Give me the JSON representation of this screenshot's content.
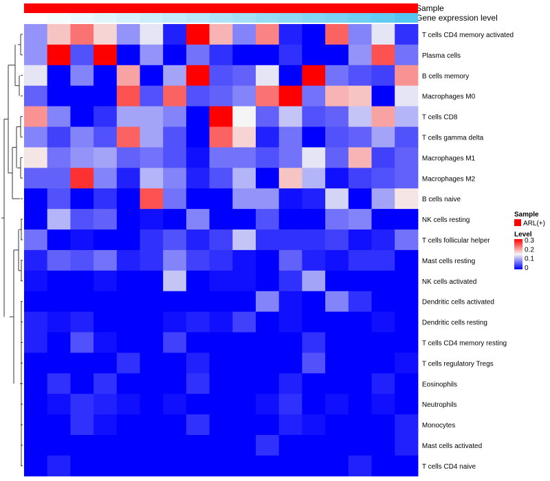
{
  "chart_data": {
    "type": "heatmap",
    "annotation_tracks": [
      {
        "name": "Sample",
        "kind": "categorical",
        "color": "#ff0000"
      },
      {
        "name": "Gene expression level",
        "kind": "continuous",
        "low_color": "#ffffff",
        "high_color": "#55c6f0"
      }
    ],
    "gene_expression_level": [
      0.0,
      0.06,
      0.12,
      0.18,
      0.24,
      0.3,
      0.36,
      0.42,
      0.48,
      0.55,
      0.61,
      0.67,
      0.73,
      0.79,
      0.85,
      0.91,
      1.0
    ],
    "rows": [
      "T cells CD4 memory activated",
      "Plasma cells",
      "B cells memory",
      "Macrophages M0",
      "T cells CD8",
      "T cells gamma delta",
      "Macrophages M1",
      "Macrophages M2",
      "B cells naive",
      "NK cells resting",
      "T cells follicular helper",
      "Mast cells resting",
      "NK cells activated",
      "Dendritic cells activated",
      "Dendritic cells resting",
      "T cells CD4 memory resting",
      "T cells regulatory  Tregs",
      "Eosinophils",
      "Neutrophils",
      "Monocytes",
      "Mast cells activated",
      "T cells CD4 naive"
    ],
    "n_columns": 17,
    "values": [
      [
        0.09,
        0.18,
        0.23,
        0.17,
        0.09,
        0.14,
        0.02,
        0.32,
        0.19,
        0.08,
        0.22,
        0.02,
        0.0,
        0.24,
        0.08,
        0.14,
        0.03
      ],
      [
        0.09,
        0.32,
        0.05,
        0.32,
        0.0,
        0.09,
        0.0,
        0.07,
        0.03,
        0.0,
        0.0,
        0.03,
        0.0,
        0.0,
        0.09,
        0.25,
        0.07
      ],
      [
        0.14,
        0.0,
        0.08,
        0.0,
        0.2,
        0.0,
        0.1,
        0.32,
        0.05,
        0.06,
        0.14,
        0.0,
        0.32,
        0.07,
        0.05,
        0.04,
        0.21
      ],
      [
        0.06,
        0.0,
        0.0,
        0.0,
        0.25,
        0.05,
        0.24,
        0.05,
        0.06,
        0.08,
        0.23,
        0.32,
        0.07,
        0.19,
        0.18,
        0.0,
        0.14
      ],
      [
        0.21,
        0.08,
        0.0,
        0.03,
        0.1,
        0.1,
        0.08,
        0.0,
        0.3,
        0.15,
        0.06,
        0.12,
        0.05,
        0.06,
        0.12,
        0.2,
        0.11
      ],
      [
        0.08,
        0.04,
        0.08,
        0.05,
        0.24,
        0.1,
        0.05,
        0.0,
        0.24,
        0.17,
        0.02,
        0.07,
        0.0,
        0.05,
        0.06,
        0.1,
        0.05
      ],
      [
        0.16,
        0.07,
        0.09,
        0.1,
        0.06,
        0.07,
        0.05,
        0.01,
        0.07,
        0.07,
        0.05,
        0.07,
        0.14,
        0.06,
        0.19,
        0.04,
        0.06
      ],
      [
        0.06,
        0.06,
        0.27,
        0.08,
        0.02,
        0.11,
        0.08,
        0.02,
        0.05,
        0.11,
        0.0,
        0.18,
        0.11,
        0.01,
        0.04,
        0.05,
        0.06
      ],
      [
        0.0,
        0.05,
        0.0,
        0.03,
        0.0,
        0.25,
        0.07,
        0.0,
        0.0,
        0.09,
        0.09,
        0.01,
        0.02,
        0.13,
        0.0,
        0.1,
        0.16
      ],
      [
        0.0,
        0.11,
        0.05,
        0.06,
        0.0,
        0.01,
        0.0,
        0.08,
        0.0,
        0.0,
        0.05,
        0.0,
        0.0,
        0.07,
        0.08,
        0.0,
        0.0
      ],
      [
        0.07,
        0.0,
        0.01,
        0.0,
        0.0,
        0.03,
        0.05,
        0.02,
        0.04,
        0.12,
        0.03,
        0.03,
        0.03,
        0.04,
        0.01,
        0.02,
        0.07
      ],
      [
        0.02,
        0.06,
        0.05,
        0.07,
        0.02,
        0.03,
        0.08,
        0.04,
        0.03,
        0.01,
        0.0,
        0.06,
        0.02,
        0.01,
        0.03,
        0.03,
        0.0
      ],
      [
        0.01,
        0.0,
        0.0,
        0.01,
        0.0,
        0.0,
        0.12,
        0.0,
        0.01,
        0.01,
        0.0,
        0.03,
        0.1,
        0.0,
        0.0,
        0.0,
        0.0
      ],
      [
        0.0,
        0.0,
        0.0,
        0.0,
        0.0,
        0.0,
        0.0,
        0.0,
        0.0,
        0.0,
        0.08,
        0.01,
        0.0,
        0.08,
        0.03,
        0.0,
        0.0
      ],
      [
        0.02,
        0.01,
        0.02,
        0.0,
        0.0,
        0.0,
        0.01,
        0.02,
        0.01,
        0.04,
        0.0,
        0.01,
        0.0,
        0.0,
        0.0,
        0.01,
        0.0
      ],
      [
        0.02,
        0.0,
        0.05,
        0.01,
        0.0,
        0.0,
        0.04,
        0.0,
        0.0,
        0.0,
        0.0,
        0.0,
        0.03,
        0.0,
        0.0,
        0.0,
        0.0
      ],
      [
        0.0,
        0.0,
        0.0,
        0.0,
        0.03,
        0.0,
        0.0,
        0.02,
        0.0,
        0.0,
        0.0,
        0.0,
        0.05,
        0.0,
        0.0,
        0.0,
        0.01
      ],
      [
        0.0,
        0.03,
        0.0,
        0.03,
        0.0,
        0.0,
        0.0,
        0.03,
        0.0,
        0.0,
        0.0,
        0.02,
        0.0,
        0.0,
        0.0,
        0.02,
        0.0
      ],
      [
        0.0,
        0.01,
        0.03,
        0.02,
        0.01,
        0.0,
        0.01,
        0.0,
        0.0,
        0.0,
        0.01,
        0.03,
        0.0,
        0.01,
        0.0,
        0.01,
        0.0
      ],
      [
        0.0,
        0.0,
        0.03,
        0.01,
        0.0,
        0.0,
        0.0,
        0.03,
        0.0,
        0.0,
        0.0,
        0.02,
        0.01,
        0.0,
        0.0,
        0.0,
        0.02
      ],
      [
        0.0,
        0.0,
        0.0,
        0.0,
        0.0,
        0.0,
        0.0,
        0.0,
        0.0,
        0.0,
        0.03,
        0.0,
        0.0,
        0.0,
        0.0,
        0.0,
        0.02
      ],
      [
        0.0,
        0.02,
        0.0,
        0.0,
        0.0,
        0.0,
        0.0,
        0.0,
        0.0,
        0.0,
        0.0,
        0.0,
        0.0,
        0.0,
        0.02,
        0.0,
        0.0
      ]
    ],
    "color_scale": {
      "min": 0,
      "mid": 0.15,
      "max": 0.3,
      "low": "#0000ff",
      "mid_color": "#f5f5f5",
      "high": "#ff0000"
    },
    "legend": {
      "sample_title": "Sample",
      "sample_entry": "ARL(+)",
      "level_title": "Level",
      "level_ticks": [
        "0.3",
        "0.2",
        "0.1",
        "0"
      ],
      "placement": "right"
    }
  }
}
